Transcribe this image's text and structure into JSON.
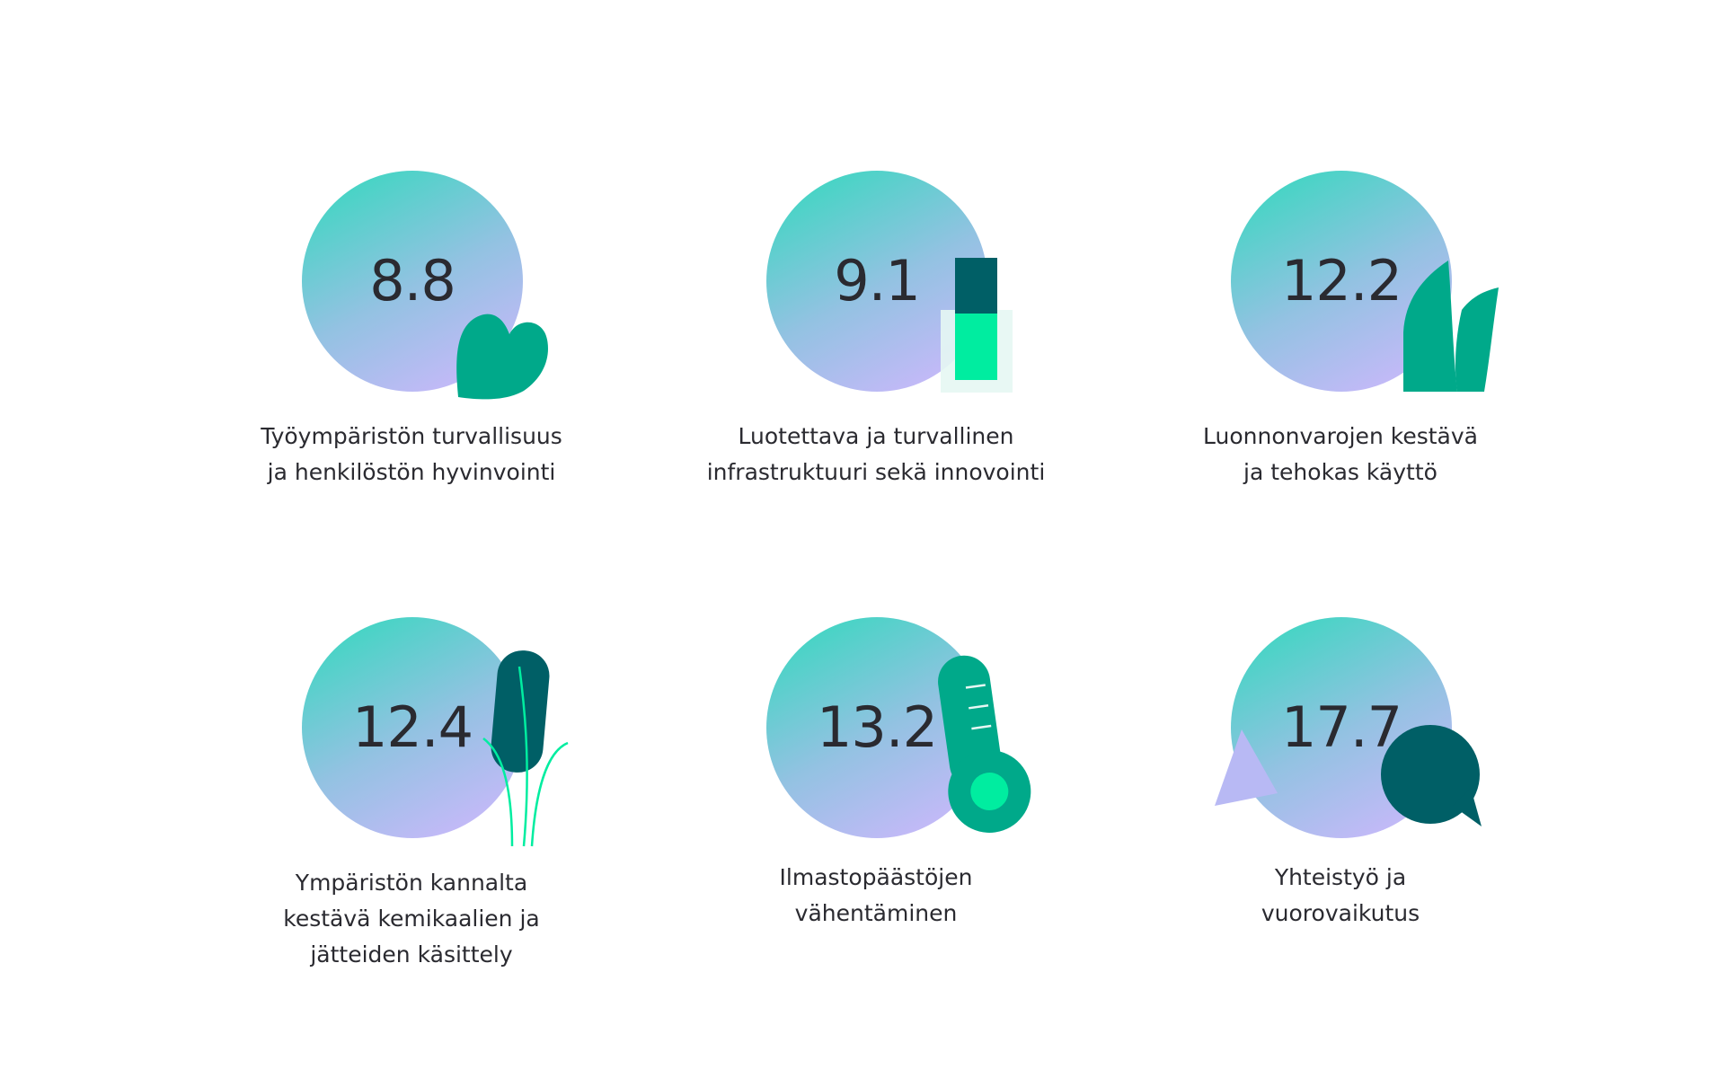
{
  "colors": {
    "gradient_start": "#3fd6c2",
    "gradient_mid": "#93c2e2",
    "gradient_end": "#cbb8fb",
    "accent_green": "#00a98a",
    "dark_teal": "#005f66",
    "bright_green": "#00eda0",
    "pale_mint": "#e6f7f3",
    "text": "#2a2a30"
  },
  "items": [
    {
      "value": "8.8",
      "icon": "heart-icon",
      "label_lines": [
        "Työympäristön turvallisuus",
        "ja henkilöstön hyvinvointi"
      ]
    },
    {
      "value": "9.1",
      "icon": "battery-icon",
      "label_lines": [
        "Luotettava ja turvallinen",
        "infrastruktuuri sekä innovointi"
      ]
    },
    {
      "value": "12.2",
      "icon": "leaves-icon",
      "label_lines": [
        "Luonnonvarojen kestävä",
        "ja tehokas käyttö"
      ]
    },
    {
      "value": "12.4",
      "icon": "reed-icon",
      "label_lines": [
        "Ympäristön kannalta",
        "kestävä kemikaalien ja",
        "jätteiden käsittely"
      ]
    },
    {
      "value": "13.2",
      "icon": "thermometer-icon",
      "label_lines": [
        "Ilmastopäästöjen",
        "vähentäminen"
      ]
    },
    {
      "value": "17.7",
      "icon": "chat-bubble-icon",
      "label_lines": [
        "Yhteistyö ja",
        "vuorovaikutus"
      ]
    }
  ]
}
